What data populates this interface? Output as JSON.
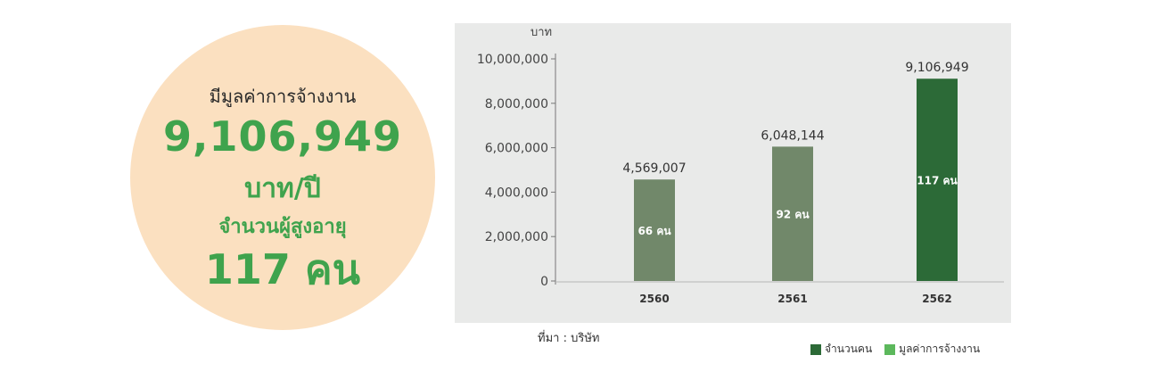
{
  "summary": {
    "line1": "มีมูลค่าการจ้างงาน",
    "amount": "9,106,949",
    "unit": "บาท/ปี",
    "line4": "จำนวนผู้สูงอายุ",
    "people": "117 คน"
  },
  "colors": {
    "circle": "#fbe0c0",
    "accent_green": "#3fa34d",
    "bar_light": "#71886a",
    "bar_dark": "#2c6a37",
    "legend_light": "#5cb85c"
  },
  "chart_data": {
    "type": "bar",
    "title": "",
    "ylabel": "บาท",
    "xlabel": "",
    "ylim": [
      0,
      10000000
    ],
    "yticks": [
      0,
      2000000,
      4000000,
      6000000,
      8000000,
      10000000
    ],
    "ytick_labels": [
      "0",
      "2,000,000",
      "4,000,000",
      "6,000,000",
      "8,000,000",
      "10,000,000"
    ],
    "categories": [
      "2560",
      "2561",
      "2562"
    ],
    "values": [
      4569007,
      6048144,
      9106949
    ],
    "value_labels": [
      "4,569,007",
      "6,048,144",
      "9,106,949"
    ],
    "inner_labels": [
      "66 คน",
      "92 คน",
      "117 คน"
    ],
    "legend": [
      "จำนวนคน",
      "มูลค่าการจ้างงาน"
    ],
    "legend_placement": "bottom-right",
    "source": "ที่มา : บริษัท"
  }
}
